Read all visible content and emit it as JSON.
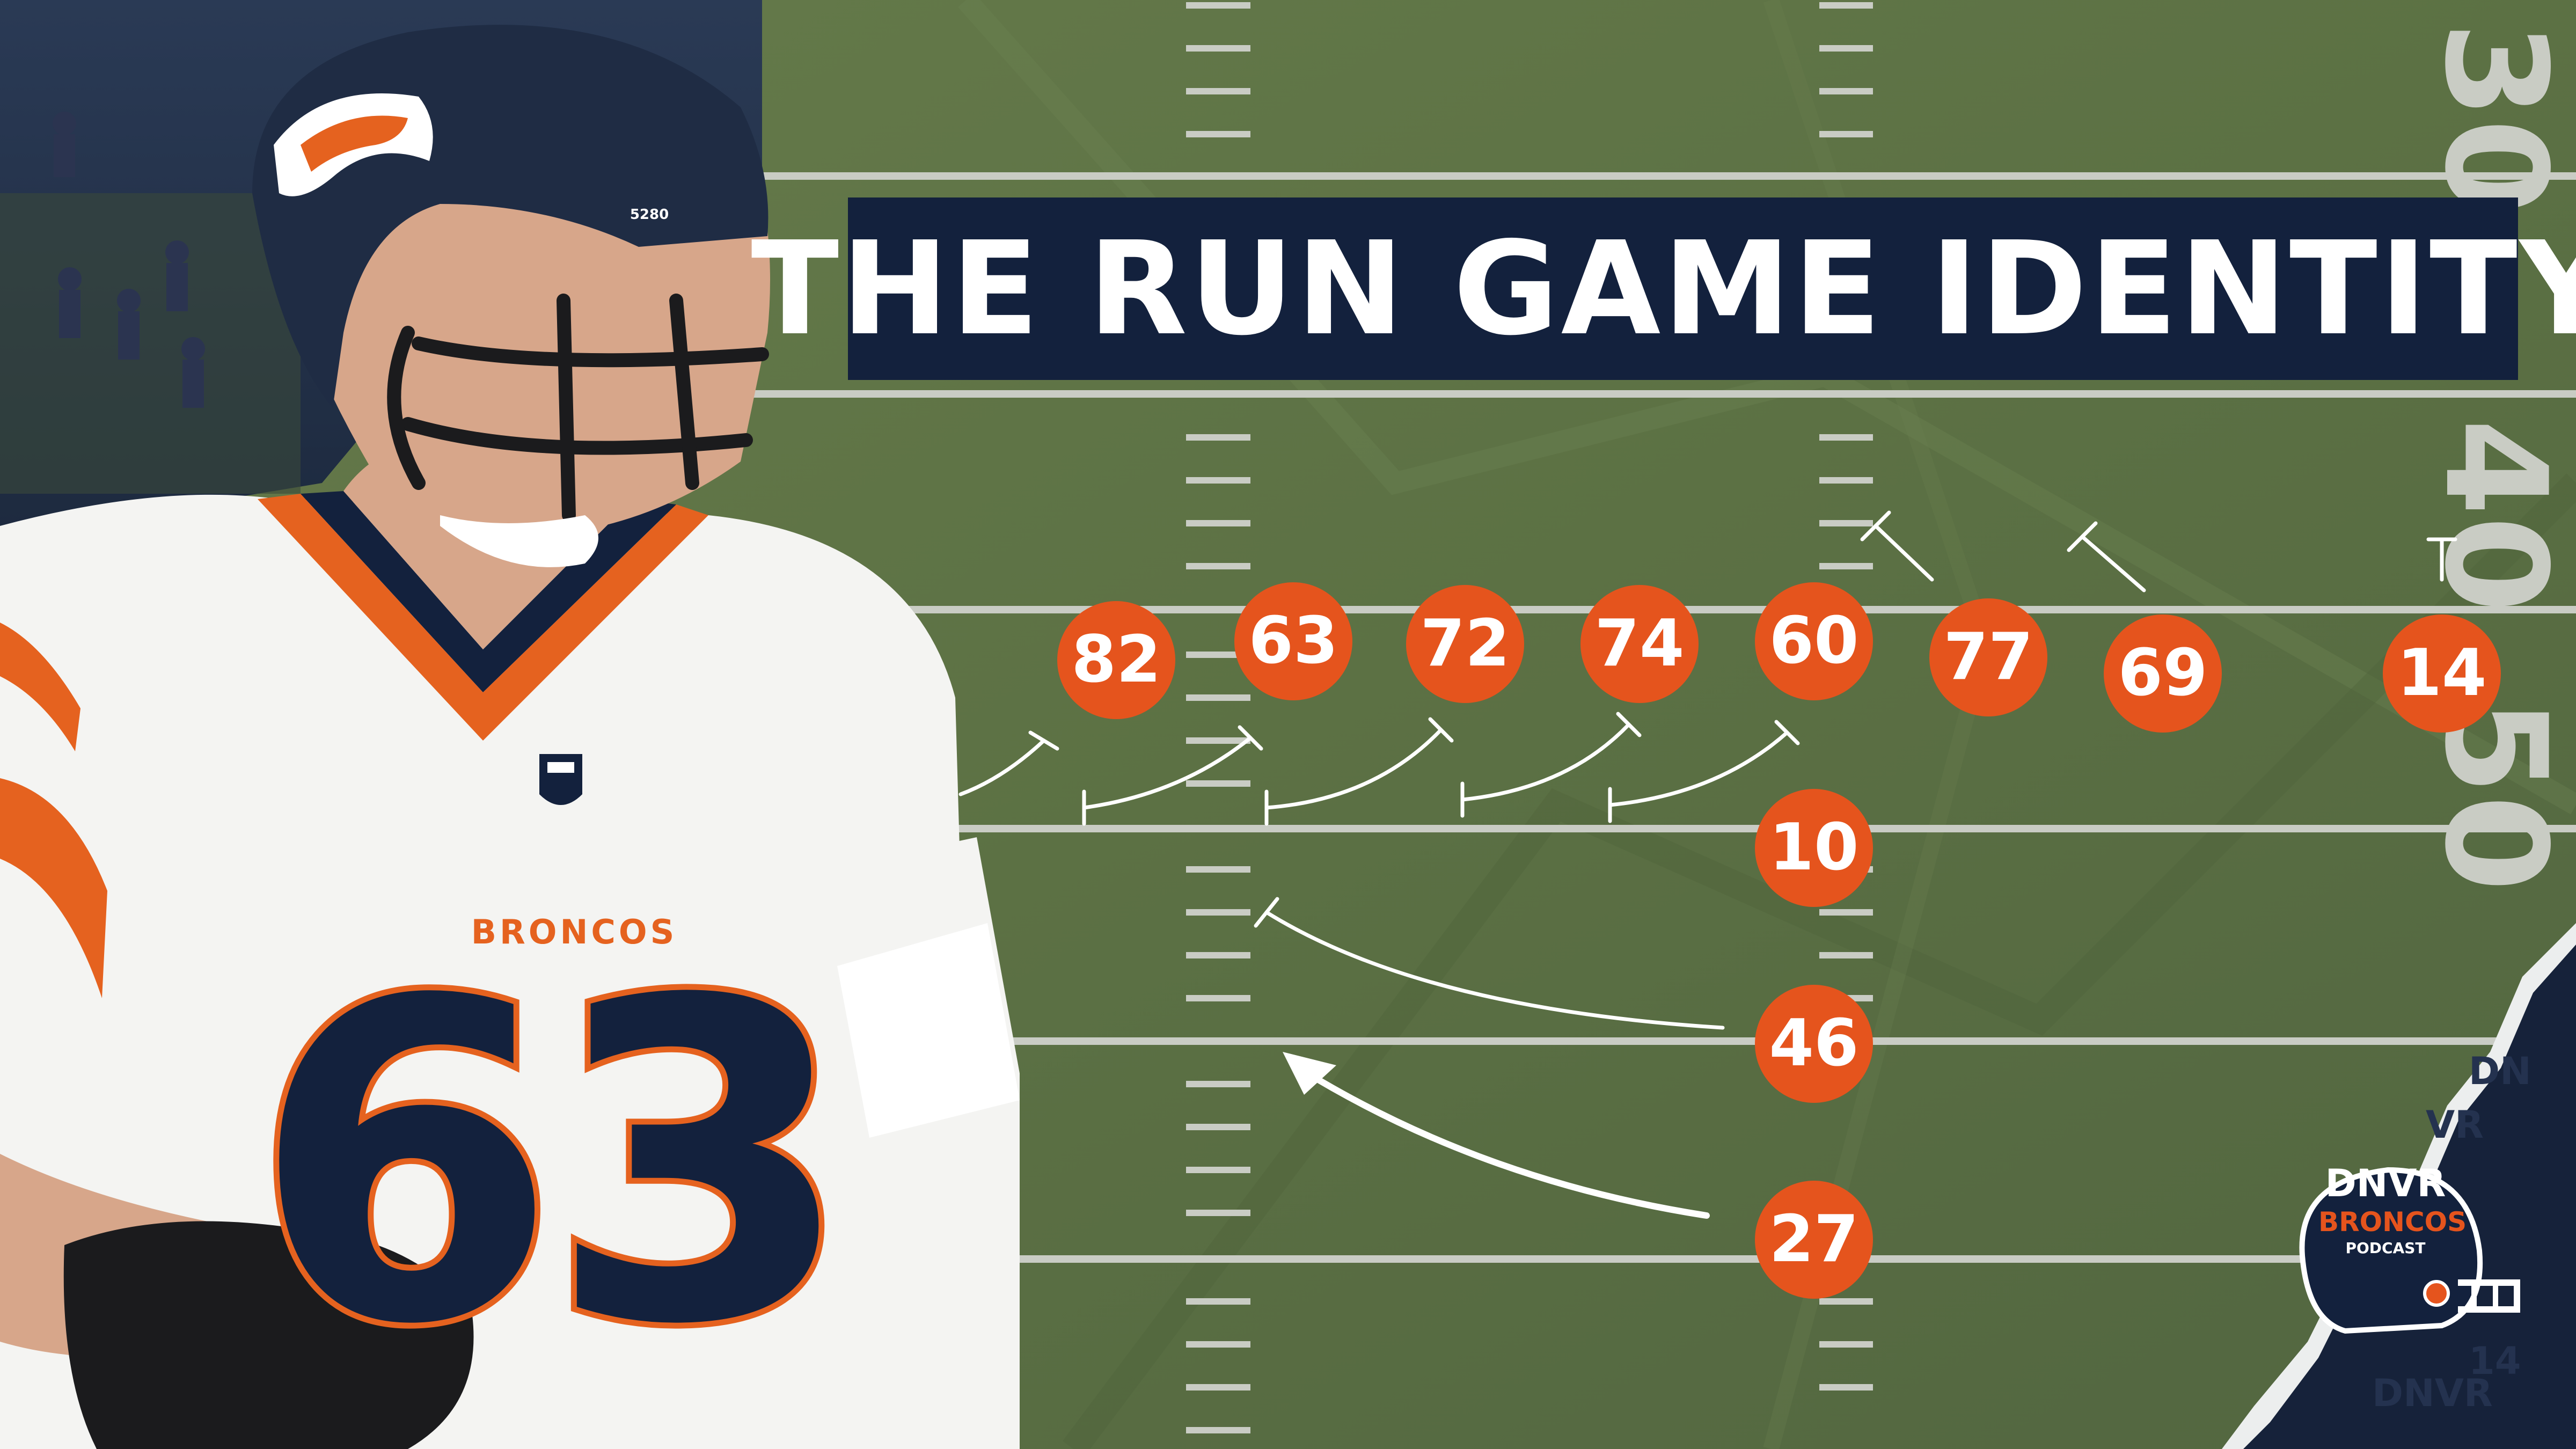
{
  "title": "THE RUN GAME IDENTITY",
  "colors": {
    "field": "#5e7346",
    "title_bg": "#13213d",
    "player_circle": "#e5541d",
    "yard_lines": "#c9ccc4",
    "navy": "#13213d",
    "orange": "#e5621f"
  },
  "yard_numbers": [
    "30",
    "40",
    "50"
  ],
  "players": [
    {
      "number": "82"
    },
    {
      "number": "63"
    },
    {
      "number": "72"
    },
    {
      "number": "74"
    },
    {
      "number": "60"
    },
    {
      "number": "77"
    },
    {
      "number": "69"
    },
    {
      "number": "14"
    },
    {
      "number": "10"
    },
    {
      "number": "46"
    },
    {
      "number": "27"
    }
  ],
  "athlete": {
    "jersey_word": "BRONCOS",
    "jersey_number": "63",
    "helmet_code": "5280",
    "icon": "broncos-horse-helmet-icon"
  },
  "logo": {
    "line1": "DNVR",
    "line2": "BRONCOS",
    "line3": "PODCAST",
    "icon": "football-helmet-icon"
  }
}
